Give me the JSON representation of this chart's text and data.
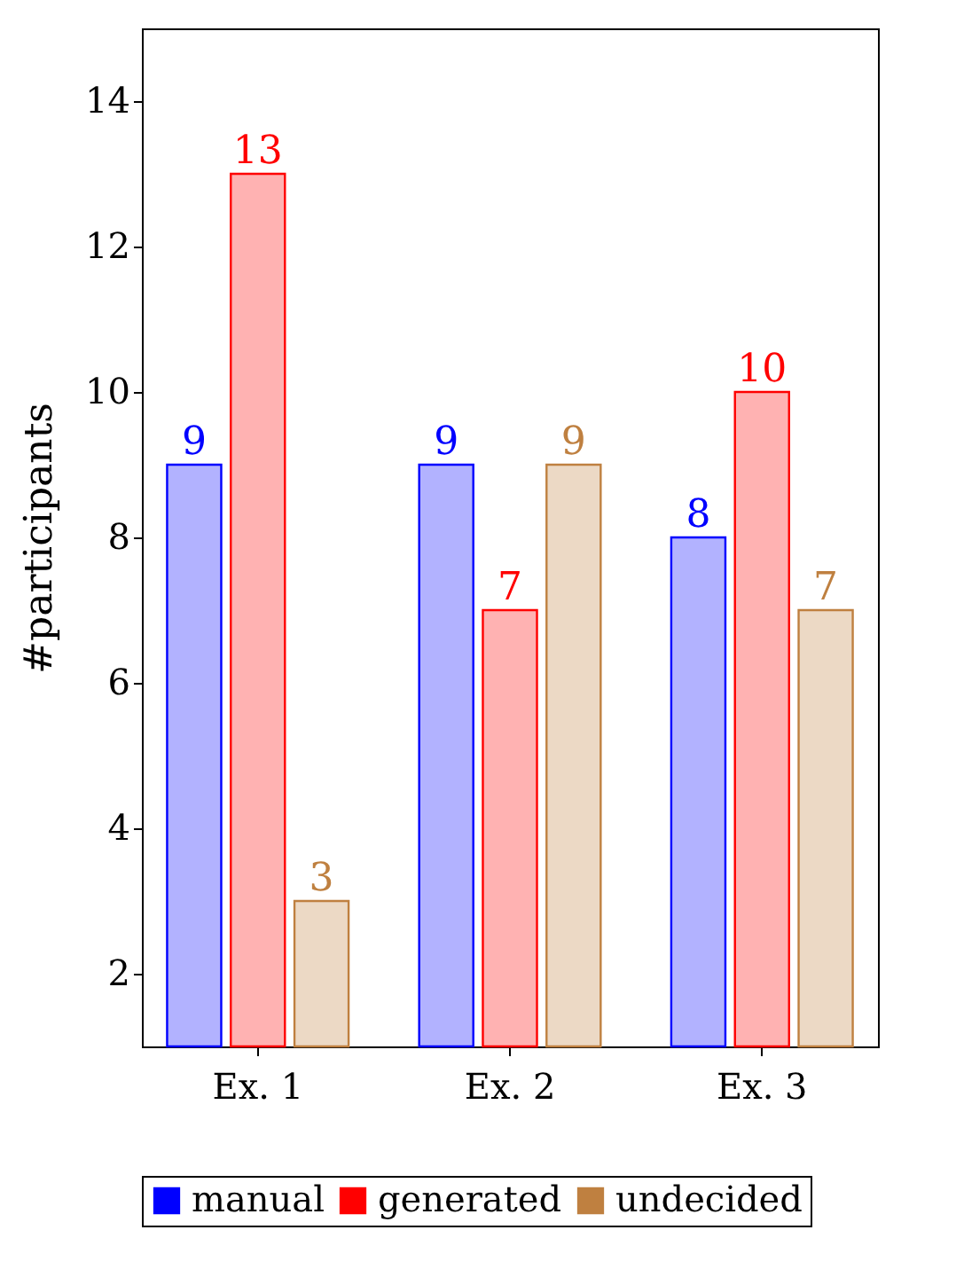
{
  "chart_data": {
    "type": "bar",
    "ylabel": "#participants",
    "categories": [
      "Ex. 1",
      "Ex. 2",
      "Ex. 3"
    ],
    "series": [
      {
        "name": "manual",
        "color": "#0000ff",
        "values": [
          9,
          9,
          8
        ]
      },
      {
        "name": "generated",
        "color": "#ff0000",
        "values": [
          13,
          7,
          10
        ]
      },
      {
        "name": "undecided",
        "color": "#bf8040",
        "values": [
          3,
          9,
          7
        ]
      }
    ],
    "ylim": [
      1,
      15
    ],
    "yticks": [
      2,
      4,
      6,
      8,
      10,
      12,
      14
    ],
    "grid": false,
    "legend": "bottom",
    "data_labels": true
  }
}
